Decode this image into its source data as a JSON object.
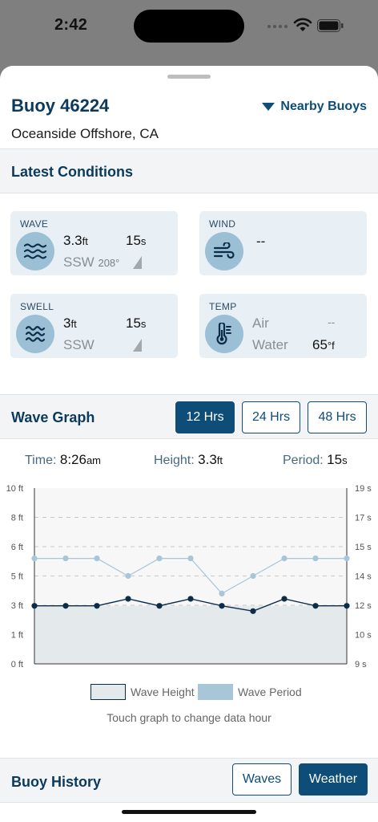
{
  "status_bar": {
    "time": "2:42"
  },
  "header": {
    "title": "Buoy 46224",
    "location": "Oceanside Offshore, CA",
    "nearby_label": "Nearby Buoys"
  },
  "latest": {
    "title": "Latest Conditions",
    "wave": {
      "label": "WAVE",
      "height": "3.3",
      "height_unit": "ft",
      "period": "15",
      "period_unit": "s",
      "direction": "SSW",
      "degrees": "208°"
    },
    "wind": {
      "label": "WIND",
      "value": "--"
    },
    "swell": {
      "label": "SWELL",
      "height": "3",
      "height_unit": "ft",
      "period": "15",
      "period_unit": "s",
      "direction": "SSW"
    },
    "temp": {
      "label": "TEMP",
      "air_label": "Air",
      "air_value": "--",
      "water_label": "Water",
      "water_value": "65",
      "water_unit": "°f"
    }
  },
  "wave_graph": {
    "title": "Wave Graph",
    "ranges": [
      "12 Hrs",
      "24 Hrs",
      "48 Hrs"
    ],
    "selected_range": "12 Hrs",
    "readout": {
      "time_label": "Time:",
      "time_value": "8:26",
      "time_suffix": "am",
      "height_label": "Height:",
      "height_value": "3.3",
      "height_unit": "ft",
      "period_label": "Period:",
      "period_value": "15",
      "period_unit": "s"
    },
    "legend": {
      "height": "Wave Height",
      "period": "Wave Period"
    },
    "hint": "Touch graph to change data hour"
  },
  "chart_data": {
    "type": "line",
    "left_axis": {
      "ticks": [
        "10 ft",
        "8 ft",
        "6 ft",
        "5 ft",
        "3 ft",
        "1 ft",
        "0 ft"
      ],
      "range": [
        0,
        10
      ]
    },
    "right_axis": {
      "ticks": [
        "19 s",
        "17 s",
        "15 s",
        "14 s",
        "12 s",
        "10 s",
        "9 s"
      ],
      "range": [
        9,
        19
      ]
    },
    "grid": true,
    "series": [
      {
        "name": "Wave Height",
        "axis": "left",
        "values": [
          3.3,
          3.3,
          3.3,
          3.7,
          3.3,
          3.7,
          3.3,
          3.0,
          3.7,
          3.3,
          3.3
        ],
        "color": "#0c2d48",
        "fill": "#e4e9ec"
      },
      {
        "name": "Wave Period",
        "axis": "right",
        "values": [
          15,
          15,
          15,
          14,
          15,
          15,
          13,
          14,
          15,
          15,
          15
        ],
        "color": "#a7c6d8"
      }
    ]
  },
  "history": {
    "title": "Buoy History",
    "waves_label": "Waves",
    "weather_label": "Weather"
  },
  "colors": {
    "primary": "#0d4d78",
    "card_bg": "#e8f0f5",
    "icon_bg": "#9bc0d5"
  }
}
